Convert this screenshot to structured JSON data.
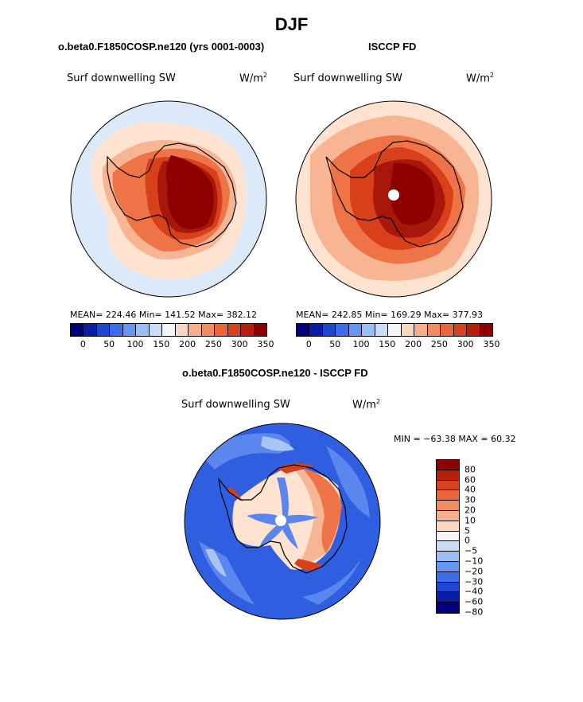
{
  "title": "DJF",
  "panels": [
    {
      "header": "o.beta0.F1850COSP.ne120 (yrs 0001-0003)",
      "variable": "Surf downwelling SW",
      "units": "W/m",
      "units_exp": "2",
      "stats": "MEAN= 224.46   Min= 141.52   Max= 382.12"
    },
    {
      "header": "ISCCP FD",
      "variable": "Surf downwelling SW",
      "units": "W/m",
      "units_exp": "2",
      "stats": "MEAN= 242.85   Min= 169.29   Max= 377.93"
    },
    {
      "header": "o.beta0.F1850COSP.ne120 - ISCCP FD",
      "variable": "Surf downwelling SW",
      "units": "W/m",
      "units_exp": "2",
      "stats": "MIN = −63.38  MAX =  60.32"
    }
  ],
  "colorbar_abs": {
    "colors": [
      "#00007f",
      "#0a1ea5",
      "#1e46d2",
      "#3c6eeb",
      "#6496f5",
      "#9bbef5",
      "#c8dcf5",
      "#f5f5f5",
      "#fad7be",
      "#f5af8c",
      "#f08c64",
      "#eb643c",
      "#d7411e",
      "#b91e0a",
      "#8c0000"
    ],
    "labels": [
      "0",
      "50",
      "100",
      "150",
      "200",
      "250",
      "300",
      "350"
    ]
  },
  "colorbar_diff": {
    "colors": [
      "#8c0000",
      "#b91e0a",
      "#d7411e",
      "#eb643c",
      "#f08c64",
      "#f5af8c",
      "#fad7be",
      "#f5f5f5",
      "#c8dcf5",
      "#9bbef5",
      "#6496f5",
      "#3c6eeb",
      "#1e46d2",
      "#0a1ea5",
      "#00007f"
    ],
    "labels": [
      "80",
      "60",
      "40",
      "30",
      "20",
      "10",
      "5",
      "0",
      "−5",
      "−10",
      "−20",
      "−30",
      "−40",
      "−60",
      "−80"
    ]
  },
  "map_colors": {
    "ocean_light": "#dce9f8",
    "pale": "#fde3d0",
    "peach": "#f8b594",
    "orange": "#ee7448",
    "red": "#d8401c",
    "darkred": "#a8180a",
    "maroon": "#8c0000",
    "diff_blue": "#2f5fe0",
    "diff_midblue": "#5a86ee",
    "diff_lightblue": "#a9c6f3"
  }
}
